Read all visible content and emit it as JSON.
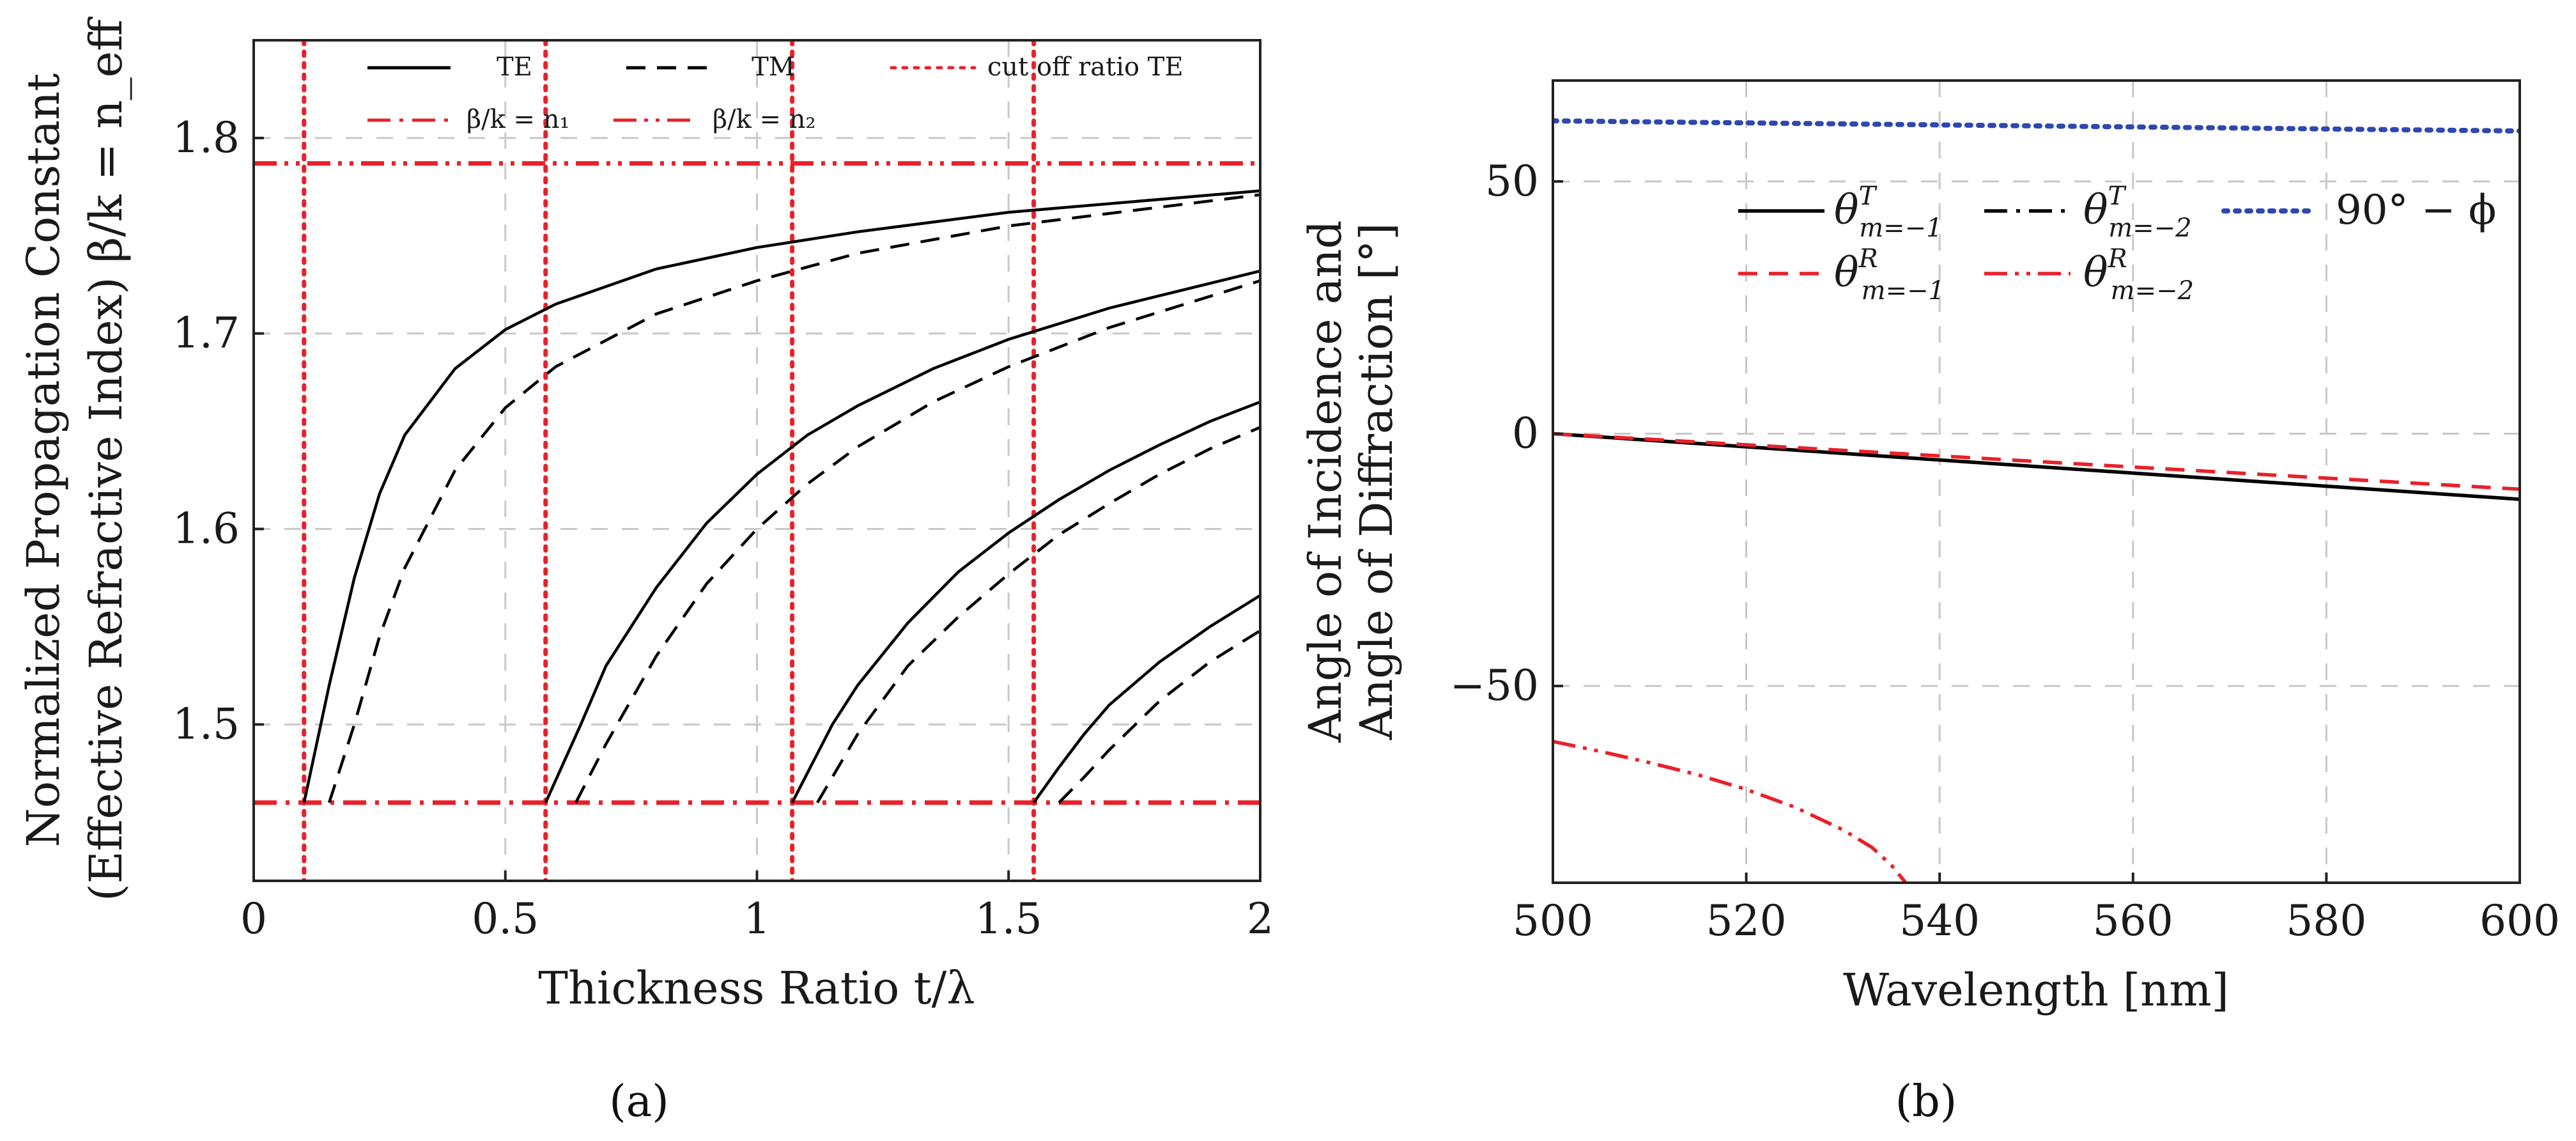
{
  "chart_data": [
    {
      "type": "line",
      "panel_label": "(a)",
      "xlabel": "Thickness Ratio t/λ",
      "ylabel_line1": "Normalized Propagation Constant",
      "ylabel_line2": "(Effective Refractive Index) β/k = n_eff",
      "xlim": [
        0,
        2
      ],
      "ylim": [
        1.42,
        1.85
      ],
      "xticks": [
        0,
        0.5,
        1,
        1.5,
        2
      ],
      "xtick_labels": [
        "0",
        "0.5",
        "1",
        "1.5",
        "2"
      ],
      "yticks": [
        1.5,
        1.6,
        1.7,
        1.8
      ],
      "ytick_labels": [
        "1.5",
        "1.6",
        "1.7",
        "1.8"
      ],
      "grid": true,
      "legend_position": "top",
      "legend": [
        {
          "label": "TE",
          "style": "solid",
          "color": "#000000"
        },
        {
          "label": "TM",
          "style": "dashed",
          "color": "#000000"
        },
        {
          "label": "cut off ratio TE",
          "style": "dotted",
          "color": "#e8212a"
        },
        {
          "label": "β/k = n₁",
          "style": "dashdot",
          "color": "#e8212a"
        },
        {
          "label": "β/k = n₂",
          "style": "dashdotdot",
          "color": "#e8212a"
        }
      ],
      "n1": 1.46,
      "n2": 1.787,
      "cutoffs_TE": [
        0.1,
        0.58,
        1.07,
        1.55
      ],
      "series": [
        {
          "name": "TE mode 0",
          "style": "solid",
          "x": [
            0.1,
            0.15,
            0.2,
            0.25,
            0.3,
            0.4,
            0.5,
            0.6,
            0.8,
            1.0,
            1.2,
            1.5,
            2.0
          ],
          "y": [
            1.46,
            1.52,
            1.575,
            1.618,
            1.648,
            1.682,
            1.702,
            1.715,
            1.733,
            1.744,
            1.752,
            1.762,
            1.773
          ]
        },
        {
          "name": "TM mode 0",
          "style": "dashed",
          "x": [
            0.15,
            0.2,
            0.25,
            0.3,
            0.4,
            0.5,
            0.6,
            0.8,
            1.0,
            1.2,
            1.5,
            2.0
          ],
          "y": [
            1.46,
            1.5,
            1.545,
            1.58,
            1.63,
            1.662,
            1.683,
            1.71,
            1.727,
            1.741,
            1.755,
            1.771
          ]
        },
        {
          "name": "TE mode 1",
          "style": "solid",
          "x": [
            0.58,
            0.65,
            0.7,
            0.8,
            0.9,
            1.0,
            1.1,
            1.2,
            1.35,
            1.5,
            1.7,
            2.0
          ],
          "y": [
            1.46,
            1.5,
            1.53,
            1.57,
            1.603,
            1.628,
            1.648,
            1.663,
            1.682,
            1.697,
            1.713,
            1.732
          ]
        },
        {
          "name": "TM mode 1",
          "style": "dashed",
          "x": [
            0.64,
            0.7,
            0.8,
            0.9,
            1.0,
            1.1,
            1.2,
            1.35,
            1.5,
            1.7,
            2.0
          ],
          "y": [
            1.46,
            1.49,
            1.535,
            1.572,
            1.6,
            1.623,
            1.642,
            1.665,
            1.683,
            1.703,
            1.727
          ]
        },
        {
          "name": "TE mode 2",
          "style": "solid",
          "x": [
            1.07,
            1.15,
            1.2,
            1.3,
            1.4,
            1.5,
            1.6,
            1.7,
            1.8,
            1.9,
            2.0
          ],
          "y": [
            1.46,
            1.5,
            1.52,
            1.552,
            1.578,
            1.598,
            1.615,
            1.63,
            1.643,
            1.655,
            1.665
          ]
        },
        {
          "name": "TM mode 2",
          "style": "dashed",
          "x": [
            1.12,
            1.2,
            1.3,
            1.4,
            1.5,
            1.6,
            1.7,
            1.8,
            1.9,
            2.0
          ],
          "y": [
            1.46,
            1.495,
            1.53,
            1.555,
            1.577,
            1.597,
            1.613,
            1.628,
            1.641,
            1.652
          ]
        },
        {
          "name": "TE mode 3",
          "style": "solid",
          "x": [
            1.55,
            1.6,
            1.65,
            1.7,
            1.8,
            1.9,
            2.0
          ],
          "y": [
            1.46,
            1.478,
            1.495,
            1.51,
            1.532,
            1.55,
            1.566
          ]
        },
        {
          "name": "TM mode 3",
          "style": "dashed",
          "x": [
            1.6,
            1.65,
            1.7,
            1.8,
            1.9,
            2.0
          ],
          "y": [
            1.46,
            1.473,
            1.487,
            1.512,
            1.532,
            1.548
          ]
        }
      ]
    },
    {
      "type": "line",
      "panel_label": "(b)",
      "xlabel": "Wavelength [nm]",
      "ylabel_line1": "Angle of Incidence and",
      "ylabel_line2": "Angle of Diffraction [°]",
      "xlim": [
        500,
        600
      ],
      "ylim": [
        -89,
        70
      ],
      "xticks": [
        500,
        520,
        540,
        560,
        580,
        600
      ],
      "xtick_labels": [
        "500",
        "520",
        "540",
        "560",
        "580",
        "600"
      ],
      "yticks": [
        -50,
        0,
        50
      ],
      "ytick_labels": [
        "−50",
        "0",
        "50"
      ],
      "grid": true,
      "legend_position": "top-right",
      "legend": [
        {
          "label": "θ",
          "sup": "T",
          "sub": "m=−1",
          "style": "solid",
          "color": "#000000"
        },
        {
          "label": "θ",
          "sup": "T",
          "sub": "m=−2",
          "style": "dashdot",
          "color": "#000000"
        },
        {
          "label": "90° − ϕ",
          "style": "dotted",
          "color": "#2f47b0"
        },
        {
          "label": "θ",
          "sup": "R",
          "sub": "m=−1",
          "style": "dashed",
          "color": "#e8212a"
        },
        {
          "label": "θ",
          "sup": "R",
          "sub": "m=−2",
          "style": "dashdotdot",
          "color": "#e8212a"
        }
      ],
      "series": [
        {
          "name": "theta_T_m-1",
          "style": "solid",
          "color": "#000000",
          "x": [
            500,
            520,
            540,
            560,
            580,
            600
          ],
          "y": [
            0,
            -2.6,
            -5.2,
            -7.8,
            -10.4,
            -13
          ]
        },
        {
          "name": "theta_R_m-1",
          "style": "dashed",
          "color": "#e8212a",
          "x": [
            500,
            520,
            540,
            560,
            580,
            600
          ],
          "y": [
            0,
            -2.2,
            -4.4,
            -6.6,
            -8.8,
            -11
          ]
        },
        {
          "name": "90-phi",
          "style": "dotted",
          "color": "#2f47b0",
          "x": [
            500,
            550,
            600
          ],
          "y": [
            62,
            61,
            60
          ]
        },
        {
          "name": "theta_R_m-2",
          "style": "dashdotdot",
          "color": "#e8212a",
          "x": [
            500,
            505,
            510,
            515,
            520,
            525,
            530,
            533,
            535,
            536.5
          ],
          "y": [
            -61,
            -63,
            -65.2,
            -67.6,
            -70.5,
            -74,
            -78.5,
            -82,
            -85.5,
            -89
          ]
        }
      ]
    }
  ]
}
